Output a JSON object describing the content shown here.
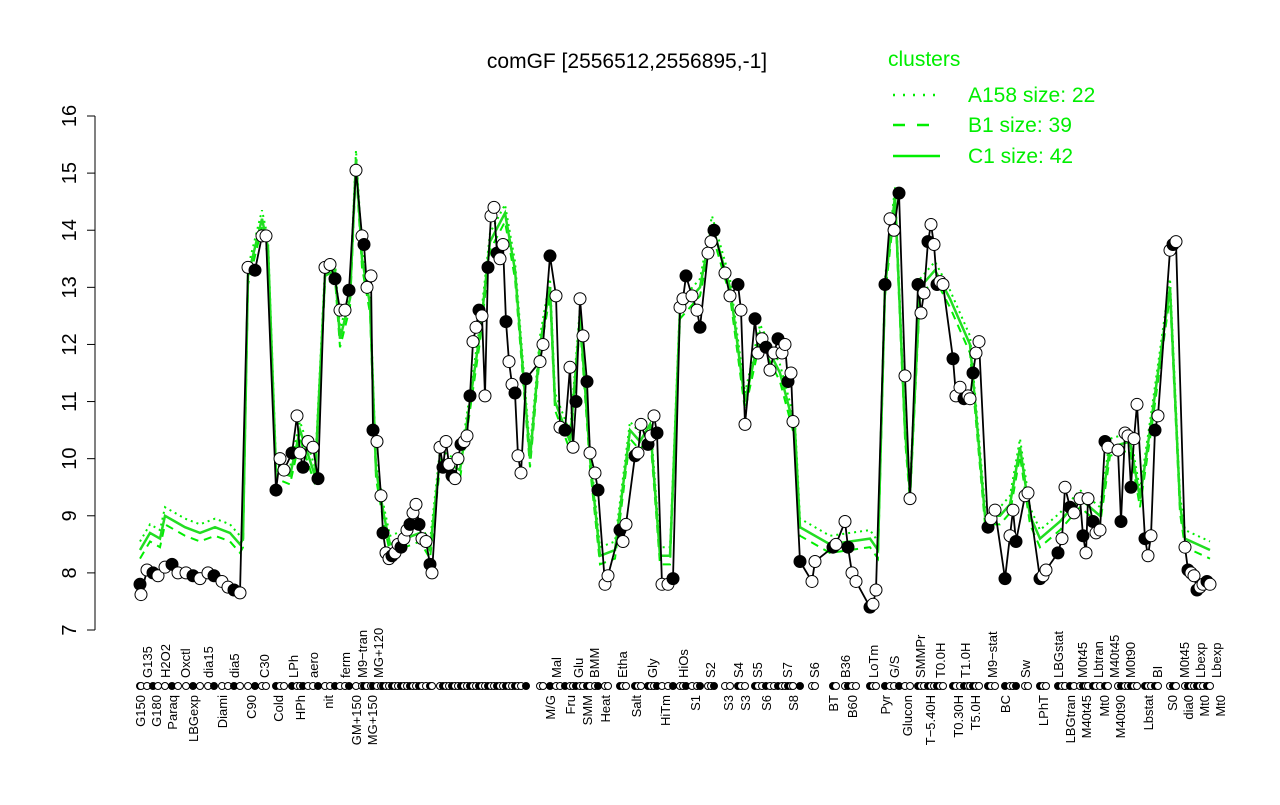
{
  "chart_data": {
    "type": "line",
    "title": "comGF [2556512,2556895,-1]",
    "xlabel": "",
    "ylabel": "",
    "ylim": [
      7,
      16
    ],
    "xlim": [
      95,
      1225
    ],
    "yticks": [
      7,
      8,
      9,
      10,
      11,
      12,
      13,
      14,
      15,
      16
    ],
    "legend": {
      "title": "clusters",
      "position": "top-right",
      "entries": [
        {
          "label": "A158 size: 22",
          "style": "dotted"
        },
        {
          "label": "B1 size: 39",
          "style": "dashed"
        },
        {
          "label": "C1 size: 42",
          "style": "solid"
        }
      ]
    },
    "colors": {
      "series": "#000000",
      "cluster": "#00ee00"
    },
    "points": [
      [
        140,
        7.8
      ],
      [
        141,
        7.62
      ],
      [
        147,
        8.05
      ],
      [
        153,
        8.0
      ],
      [
        158,
        7.95
      ],
      [
        165,
        8.1
      ],
      [
        172,
        8.15
      ],
      [
        178,
        8.0
      ],
      [
        186,
        8.0
      ],
      [
        193,
        7.95
      ],
      [
        200,
        7.9
      ],
      [
        208,
        8.0
      ],
      [
        214,
        7.95
      ],
      [
        222,
        7.85
      ],
      [
        228,
        7.75
      ],
      [
        234,
        7.7
      ],
      [
        240,
        7.65
      ],
      [
        248,
        13.35
      ],
      [
        255,
        13.3
      ],
      [
        262,
        13.9
      ],
      [
        266,
        13.9
      ],
      [
        276,
        9.45
      ],
      [
        280,
        10.0
      ],
      [
        284,
        9.8
      ],
      [
        292,
        10.1
      ],
      [
        297,
        10.75
      ],
      [
        300,
        10.1
      ],
      [
        303,
        9.85
      ],
      [
        308,
        10.3
      ],
      [
        313,
        10.2
      ],
      [
        318,
        9.65
      ],
      [
        325,
        13.35
      ],
      [
        330,
        13.4
      ],
      [
        335,
        13.15
      ],
      [
        340,
        12.6
      ],
      [
        345,
        12.6
      ],
      [
        349,
        12.95
      ],
      [
        356,
        15.05
      ],
      [
        362,
        13.9
      ],
      [
        364,
        13.75
      ],
      [
        367,
        13.0
      ],
      [
        371,
        13.2
      ],
      [
        373,
        10.5
      ],
      [
        377,
        10.3
      ],
      [
        381,
        9.35
      ],
      [
        383,
        8.7
      ],
      [
        386,
        8.35
      ],
      [
        389,
        8.25
      ],
      [
        392,
        8.3
      ],
      [
        395,
        8.35
      ],
      [
        398,
        8.5
      ],
      [
        401,
        8.45
      ],
      [
        404,
        8.6
      ],
      [
        407,
        8.75
      ],
      [
        410,
        8.85
      ],
      [
        413,
        9.05
      ],
      [
        416,
        9.2
      ],
      [
        419,
        8.85
      ],
      [
        422,
        8.6
      ],
      [
        426,
        8.55
      ],
      [
        430,
        8.15
      ],
      [
        432,
        8.0
      ],
      [
        440,
        10.2
      ],
      [
        443,
        9.85
      ],
      [
        446,
        10.3
      ],
      [
        449,
        9.9
      ],
      [
        452,
        9.7
      ],
      [
        455,
        9.65
      ],
      [
        458,
        10.0
      ],
      [
        461,
        10.25
      ],
      [
        464,
        10.3
      ],
      [
        467,
        10.4
      ],
      [
        470,
        11.1
      ],
      [
        473,
        12.05
      ],
      [
        476,
        12.3
      ],
      [
        479,
        12.6
      ],
      [
        482,
        12.5
      ],
      [
        485,
        11.1
      ],
      [
        488,
        13.35
      ],
      [
        491,
        14.25
      ],
      [
        494,
        14.4
      ],
      [
        497,
        13.6
      ],
      [
        500,
        13.5
      ],
      [
        503,
        13.75
      ],
      [
        506,
        12.4
      ],
      [
        509,
        11.7
      ],
      [
        512,
        11.3
      ],
      [
        515,
        11.15
      ],
      [
        518,
        10.05
      ],
      [
        521,
        9.75
      ],
      [
        526,
        11.4
      ],
      [
        540,
        11.7
      ],
      [
        543,
        12.0
      ],
      [
        550,
        13.55
      ],
      [
        556,
        12.85
      ],
      [
        560,
        10.55
      ],
      [
        565,
        10.5
      ],
      [
        570,
        11.6
      ],
      [
        573,
        10.2
      ],
      [
        576,
        11.0
      ],
      [
        580,
        12.8
      ],
      [
        583,
        12.15
      ],
      [
        587,
        11.35
      ],
      [
        590,
        10.1
      ],
      [
        595,
        9.75
      ],
      [
        598,
        9.45
      ],
      [
        605,
        7.8
      ],
      [
        608,
        7.95
      ],
      [
        620,
        8.75
      ],
      [
        623,
        8.55
      ],
      [
        626,
        8.85
      ],
      [
        635,
        10.05
      ],
      [
        638,
        10.1
      ],
      [
        641,
        10.6
      ],
      [
        648,
        10.25
      ],
      [
        651,
        10.4
      ],
      [
        654,
        10.75
      ],
      [
        657,
        10.45
      ],
      [
        662,
        7.8
      ],
      [
        668,
        7.8
      ],
      [
        673,
        7.9
      ],
      [
        680,
        12.65
      ],
      [
        683,
        12.8
      ],
      [
        686,
        13.2
      ],
      [
        692,
        12.85
      ],
      [
        697,
        12.6
      ],
      [
        700,
        12.3
      ],
      [
        708,
        13.6
      ],
      [
        711,
        13.8
      ],
      [
        714,
        14.0
      ],
      [
        725,
        13.25
      ],
      [
        730,
        12.85
      ],
      [
        738,
        13.05
      ],
      [
        741,
        12.6
      ],
      [
        745,
        10.6
      ],
      [
        755,
        12.45
      ],
      [
        758,
        11.85
      ],
      [
        762,
        12.1
      ],
      [
        766,
        11.95
      ],
      [
        770,
        11.55
      ],
      [
        774,
        11.85
      ],
      [
        778,
        12.1
      ],
      [
        782,
        11.85
      ],
      [
        785,
        12.0
      ],
      [
        788,
        11.35
      ],
      [
        791,
        11.5
      ],
      [
        793,
        10.65
      ],
      [
        800,
        8.2
      ],
      [
        812,
        7.85
      ],
      [
        815,
        8.2
      ],
      [
        833,
        8.45
      ],
      [
        836,
        8.5
      ],
      [
        845,
        8.9
      ],
      [
        848,
        8.45
      ],
      [
        852,
        8.0
      ],
      [
        856,
        7.85
      ],
      [
        870,
        7.4
      ],
      [
        873,
        7.45
      ],
      [
        876,
        7.7
      ],
      [
        885,
        13.05
      ],
      [
        890,
        14.2
      ],
      [
        894,
        14.0
      ],
      [
        899,
        14.65
      ],
      [
        905,
        11.45
      ],
      [
        910,
        9.3
      ],
      [
        918,
        13.05
      ],
      [
        921,
        12.55
      ],
      [
        924,
        12.9
      ],
      [
        928,
        13.8
      ],
      [
        931,
        14.1
      ],
      [
        934,
        13.75
      ],
      [
        937,
        13.05
      ],
      [
        940,
        13.1
      ],
      [
        943,
        13.05
      ],
      [
        953,
        11.75
      ],
      [
        956,
        11.1
      ],
      [
        960,
        11.25
      ],
      [
        964,
        11.05
      ],
      [
        968,
        11.1
      ],
      [
        970,
        11.05
      ],
      [
        973,
        11.5
      ],
      [
        976,
        11.85
      ],
      [
        979,
        12.05
      ],
      [
        988,
        8.8
      ],
      [
        991,
        8.95
      ],
      [
        995,
        9.1
      ],
      [
        1005,
        7.9
      ],
      [
        1010,
        8.65
      ],
      [
        1013,
        9.1
      ],
      [
        1016,
        8.55
      ],
      [
        1025,
        9.35
      ],
      [
        1028,
        9.4
      ],
      [
        1040,
        7.9
      ],
      [
        1043,
        7.95
      ],
      [
        1046,
        8.05
      ],
      [
        1058,
        8.35
      ],
      [
        1062,
        8.6
      ],
      [
        1065,
        9.5
      ],
      [
        1070,
        9.15
      ],
      [
        1074,
        9.05
      ],
      [
        1080,
        9.3
      ],
      [
        1083,
        8.65
      ],
      [
        1086,
        8.35
      ],
      [
        1088,
        9.3
      ],
      [
        1093,
        8.9
      ],
      [
        1096,
        8.7
      ],
      [
        1100,
        8.75
      ],
      [
        1105,
        10.3
      ],
      [
        1108,
        10.2
      ],
      [
        1118,
        10.15
      ],
      [
        1121,
        8.9
      ],
      [
        1125,
        10.45
      ],
      [
        1128,
        10.4
      ],
      [
        1131,
        9.5
      ],
      [
        1134,
        10.35
      ],
      [
        1137,
        10.95
      ],
      [
        1145,
        8.6
      ],
      [
        1148,
        8.3
      ],
      [
        1151,
        8.65
      ],
      [
        1155,
        10.5
      ],
      [
        1158,
        10.75
      ],
      [
        1170,
        13.65
      ],
      [
        1173,
        13.75
      ],
      [
        1176,
        13.8
      ],
      [
        1185,
        8.45
      ],
      [
        1188,
        8.05
      ],
      [
        1191,
        8.0
      ],
      [
        1194,
        7.95
      ],
      [
        1197,
        7.7
      ],
      [
        1200,
        7.75
      ],
      [
        1203,
        7.8
      ],
      [
        1207,
        7.85
      ],
      [
        1210,
        7.8
      ]
    ],
    "cluster_line": [
      [
        140,
        8.4
      ],
      [
        150,
        8.7
      ],
      [
        160,
        8.6
      ],
      [
        165,
        9.0
      ],
      [
        175,
        8.9
      ],
      [
        185,
        8.8
      ],
      [
        200,
        8.7
      ],
      [
        215,
        8.8
      ],
      [
        230,
        8.7
      ],
      [
        240,
        8.5
      ],
      [
        243,
        8.6
      ],
      [
        248,
        13.2
      ],
      [
        262,
        14.2
      ],
      [
        268,
        13.7
      ],
      [
        276,
        9.8
      ],
      [
        290,
        9.7
      ],
      [
        300,
        10.5
      ],
      [
        315,
        9.7
      ],
      [
        325,
        13.2
      ],
      [
        335,
        13.3
      ],
      [
        340,
        12.1
      ],
      [
        350,
        12.8
      ],
      [
        356,
        15.25
      ],
      [
        362,
        13.5
      ],
      [
        370,
        12.7
      ],
      [
        376,
        9.8
      ],
      [
        384,
        9.0
      ],
      [
        390,
        8.5
      ],
      [
        420,
        8.7
      ],
      [
        430,
        8.4
      ],
      [
        440,
        10.0
      ],
      [
        460,
        9.8
      ],
      [
        480,
        12.2
      ],
      [
        490,
        13.8
      ],
      [
        505,
        14.3
      ],
      [
        515,
        13.3
      ],
      [
        530,
        10.0
      ],
      [
        540,
        12.0
      ],
      [
        550,
        13.0
      ],
      [
        555,
        11.0
      ],
      [
        570,
        10.3
      ],
      [
        580,
        12.5
      ],
      [
        590,
        10.0
      ],
      [
        600,
        8.3
      ],
      [
        615,
        8.4
      ],
      [
        630,
        10.5
      ],
      [
        640,
        10.3
      ],
      [
        650,
        10.6
      ],
      [
        660,
        8.3
      ],
      [
        670,
        8.3
      ],
      [
        680,
        12.6
      ],
      [
        700,
        13.0
      ],
      [
        712,
        14.1
      ],
      [
        730,
        13.0
      ],
      [
        745,
        11.0
      ],
      [
        760,
        12.2
      ],
      [
        780,
        11.5
      ],
      [
        795,
        10.5
      ],
      [
        800,
        8.8
      ],
      [
        830,
        8.5
      ],
      [
        870,
        8.6
      ],
      [
        878,
        8.4
      ],
      [
        885,
        13.0
      ],
      [
        895,
        14.6
      ],
      [
        905,
        10.5
      ],
      [
        910,
        9.4
      ],
      [
        920,
        13.0
      ],
      [
        935,
        13.3
      ],
      [
        950,
        12.8
      ],
      [
        970,
        12.0
      ],
      [
        985,
        9.0
      ],
      [
        1000,
        9.0
      ],
      [
        1010,
        9.2
      ],
      [
        1020,
        10.2
      ],
      [
        1030,
        9.0
      ],
      [
        1040,
        8.6
      ],
      [
        1060,
        8.9
      ],
      [
        1080,
        9.3
      ],
      [
        1100,
        9.0
      ],
      [
        1110,
        10.2
      ],
      [
        1130,
        10.3
      ],
      [
        1140,
        9.3
      ],
      [
        1150,
        10.5
      ],
      [
        1170,
        13.0
      ],
      [
        1180,
        9.2
      ],
      [
        1185,
        8.6
      ],
      [
        1210,
        8.4
      ]
    ],
    "xlabels_top": [
      [
        147,
        "G135"
      ],
      [
        165,
        "H2O2"
      ],
      [
        185,
        "Oxctl"
      ],
      [
        208,
        "dia15"
      ],
      [
        234,
        "dia5"
      ],
      [
        264,
        "C30"
      ],
      [
        293,
        "LPh"
      ],
      [
        313,
        "aero"
      ],
      [
        345,
        "ferm"
      ],
      [
        362,
        "M9−tran"
      ],
      [
        376,
        "MG+120"
      ],
      [
        556,
        "Mal"
      ],
      [
        578,
        "Glu"
      ],
      [
        594,
        "BMM"
      ],
      [
        622,
        "Etha"
      ],
      [
        652,
        "Gly"
      ],
      [
        683,
        "HiOs"
      ],
      [
        710,
        "S2"
      ],
      [
        738,
        "S4"
      ],
      [
        757,
        "S5"
      ],
      [
        787,
        "S7"
      ],
      [
        814,
        "S6"
      ],
      [
        845,
        "B36"
      ],
      [
        873,
        "LoTm"
      ],
      [
        894,
        "G/S"
      ],
      [
        920,
        "SMMPr"
      ],
      [
        940,
        "T0.0H"
      ],
      [
        965,
        "T1.0H"
      ],
      [
        992,
        "M9−stat"
      ],
      [
        1025,
        "Sw"
      ],
      [
        1058,
        "LBGstat"
      ],
      [
        1082,
        "M0t45"
      ],
      [
        1096,
        "Lbtran"
      ],
      [
        1110,
        "M40t45"
      ],
      [
        1130,
        "M0t90"
      ],
      [
        1157,
        "BI"
      ],
      [
        1184,
        "M0t45"
      ],
      [
        1195,
        "Lbexp"
      ],
      [
        1205,
        "Lbexp"
      ]
    ],
    "xlabels_bottom": [
      [
        140,
        "G150"
      ],
      [
        153,
        "G180"
      ],
      [
        172,
        "Paraq"
      ],
      [
        193,
        "LBGexp"
      ],
      [
        222,
        "Diami"
      ],
      [
        251,
        "C90"
      ],
      [
        278,
        "Cold"
      ],
      [
        300,
        "HPh"
      ],
      [
        328,
        "nit"
      ],
      [
        356,
        "GM+150"
      ],
      [
        367,
        "MG+150"
      ],
      [
        550,
        "M/G"
      ],
      [
        570,
        "Fru"
      ],
      [
        587,
        "SMM"
      ],
      [
        605,
        "Heat"
      ],
      [
        636,
        "Salt"
      ],
      [
        665,
        "HiTm"
      ],
      [
        695,
        "S1"
      ],
      [
        728,
        "S3"
      ],
      [
        745,
        "S3"
      ],
      [
        766,
        "S6"
      ],
      [
        793,
        "S8"
      ],
      [
        833,
        "BT"
      ],
      [
        852,
        "B60"
      ],
      [
        885,
        "Pyr"
      ],
      [
        907,
        "Glucon"
      ],
      [
        930,
        "T−5.40H"
      ],
      [
        958,
        "T0.30H"
      ],
      [
        975,
        "T5.0H"
      ],
      [
        1005,
        "BC"
      ],
      [
        1043,
        "LPhT"
      ],
      [
        1070,
        "LBGtran"
      ],
      [
        1086,
        "M40t45"
      ],
      [
        1104,
        "Mt0"
      ],
      [
        1118,
        "M40t90"
      ],
      [
        1148,
        "Lbstat"
      ],
      [
        1172,
        "S0"
      ],
      [
        1188,
        "dia0"
      ],
      [
        1200,
        "Mt0"
      ],
      [
        1207,
        "Mt0"
      ]
    ]
  }
}
